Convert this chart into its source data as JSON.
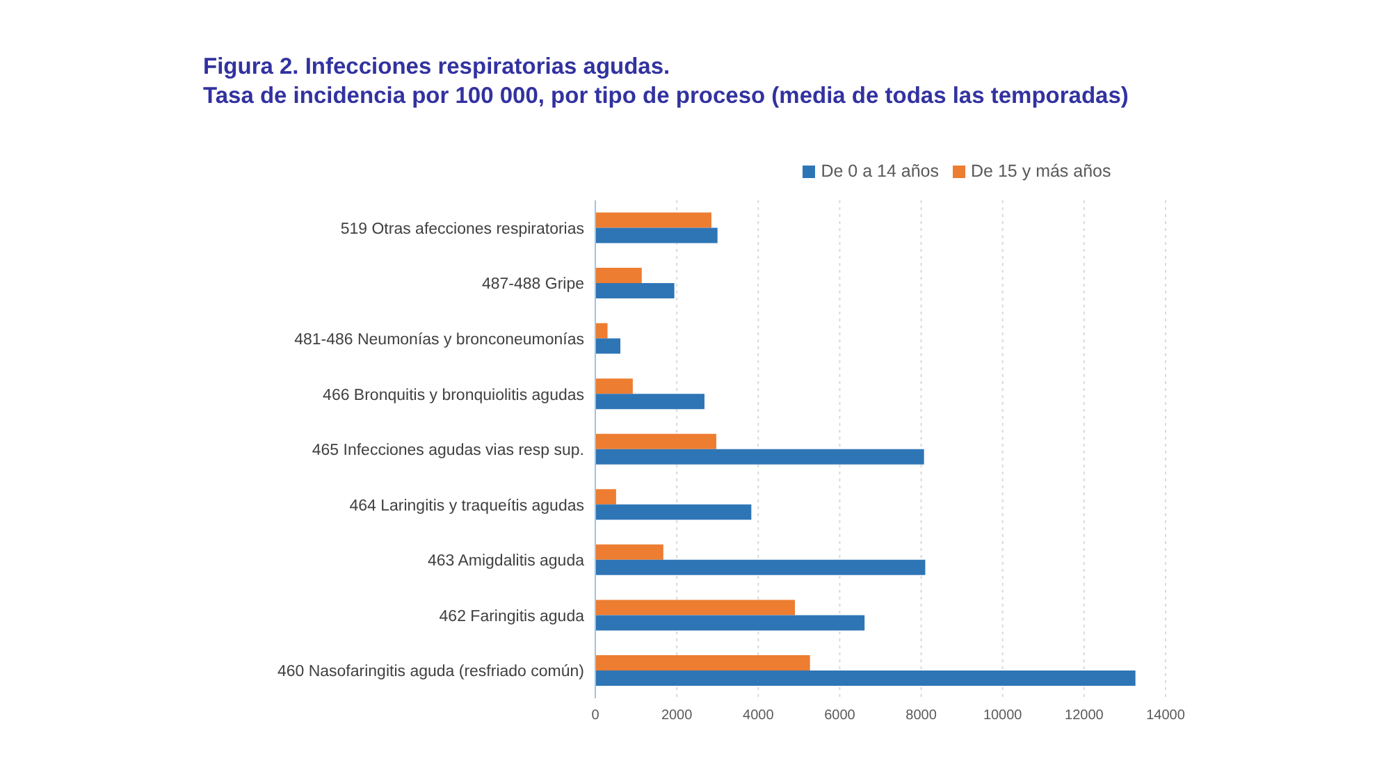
{
  "chart_data": {
    "type": "bar",
    "orientation": "horizontal",
    "title": "Figura 2. Infecciones respiratorias agudas.",
    "subtitle": "Tasa de incidencia por 100 000, por tipo de proceso (media de todas las temporadas)",
    "categories": [
      "519 Otras afecciones respiratorias",
      "487-488 Gripe",
      "481-486 Neumonías y bronconeumonías",
      "466 Bronquitis y bronquiolitis agudas",
      "465 Infecciones agudas vias resp sup.",
      "464 Laringitis y traqueítis agudas",
      "463 Amigdalitis aguda",
      "462 Faringitis aguda",
      "460 Nasofaringitis aguda (resfriado común)"
    ],
    "series": [
      {
        "name": "De 15 y más años",
        "color": "#ed7d31",
        "values": [
          2850,
          1140,
          300,
          920,
          2970,
          510,
          1670,
          4900,
          5270
        ]
      },
      {
        "name": "De 0 a 14 años",
        "color": "#2e75b6",
        "values": [
          3000,
          1940,
          615,
          2680,
          8070,
          3830,
          8100,
          6610,
          13260
        ]
      }
    ],
    "xlim": [
      0,
      14000
    ],
    "xticks": [
      0,
      2000,
      4000,
      6000,
      8000,
      10000,
      12000,
      14000
    ],
    "grid": "x",
    "legend": "top"
  }
}
